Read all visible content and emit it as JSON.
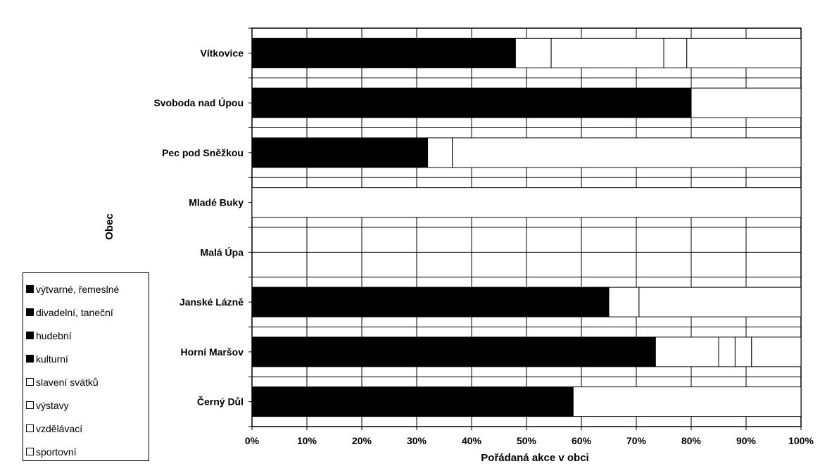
{
  "chart_data": {
    "type": "bar",
    "orientation": "horizontal",
    "stacked": "percent",
    "ylabel": "Obec",
    "xlabel": "Pořádaná akce v obci",
    "xlim": [
      0,
      100
    ],
    "xticks": [
      "0%",
      "10%",
      "20%",
      "30%",
      "40%",
      "50%",
      "60%",
      "70%",
      "80%",
      "90%",
      "100%"
    ],
    "grid": true,
    "legend_position": "bottom-left",
    "categories": [
      "Vítkovice",
      "Svoboda nad Úpou",
      "Pec pod Sněžkou",
      "Mladé Buky",
      "Malá Úpa",
      "Janské Lázně",
      "Horní Maršov",
      "Černý Důl"
    ],
    "series": [
      {
        "name": "výtvarné, řemeslné",
        "color": "#000000",
        "values": [
          0,
          0,
          0,
          0,
          0,
          0,
          0,
          0
        ]
      },
      {
        "name": "divadelní, taneční",
        "color": "#000000",
        "values": [
          0,
          0,
          0,
          0,
          0,
          0,
          0,
          0
        ]
      },
      {
        "name": "hudební",
        "color": "#000000",
        "values": [
          0,
          0,
          0,
          0,
          0,
          0,
          0,
          0
        ]
      },
      {
        "name": "kulturní",
        "color": "#000000",
        "values": [
          48,
          80,
          32,
          0,
          0,
          65,
          73.5,
          58.5
        ]
      },
      {
        "name": "slavení svátků",
        "color": "#ffffff",
        "values": [
          6.5,
          20,
          4.5,
          0,
          0,
          5.5,
          11.5,
          41.5
        ]
      },
      {
        "name": "výstavy",
        "color": "#ffffff",
        "values": [
          20.5,
          0,
          63.5,
          0,
          0,
          29.5,
          3,
          0
        ]
      },
      {
        "name": "vzdělávací",
        "color": "#ffffff",
        "values": [
          4.2,
          0,
          0,
          0,
          0,
          0,
          3,
          0
        ]
      },
      {
        "name": "sportovní",
        "color": "#ffffff",
        "values": [
          20.8,
          0,
          0,
          100,
          0,
          0,
          9,
          0
        ]
      }
    ]
  }
}
